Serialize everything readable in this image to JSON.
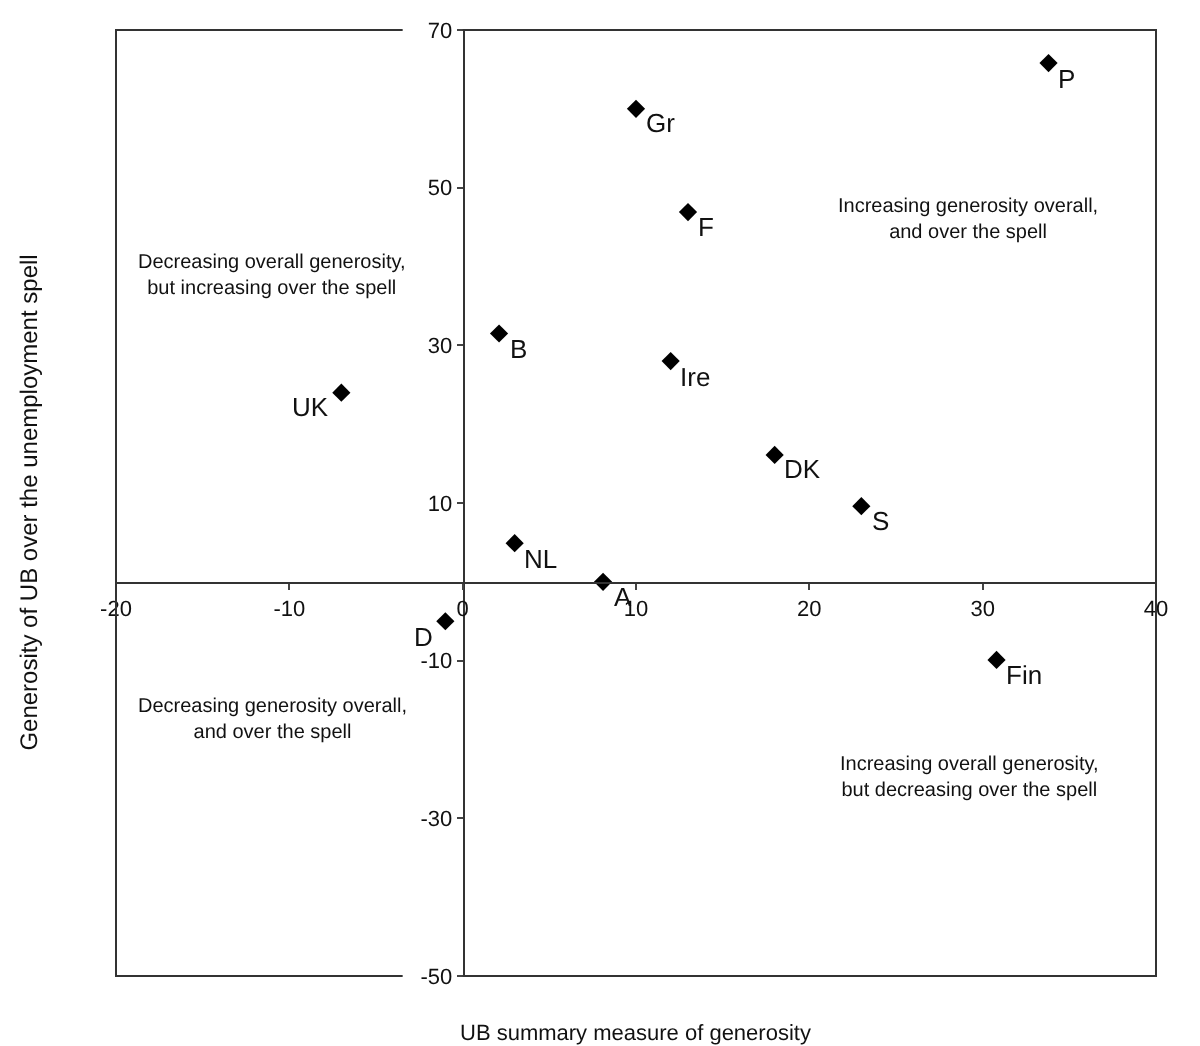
{
  "chart_data": {
    "type": "scatter",
    "xlabel": "UB summary measure of generosity",
    "ylabel": "Generosity of UB over the unemployment spell",
    "x": [
      33.8,
      10.0,
      13.0,
      2.1,
      12.0,
      -7.0,
      18.0,
      23.0,
      3.0,
      8.1,
      -1.0,
      30.8
    ],
    "values": [
      65.8,
      60.0,
      46.9,
      31.5,
      28.0,
      24.0,
      16.1,
      9.6,
      4.9,
      0,
      -5.0,
      -9.9
    ],
    "color": "#000000",
    "marker": "diamond",
    "grid": false,
    "xlim": [
      -20,
      40
    ],
    "xticks": [
      -20,
      -10,
      0,
      10,
      20,
      30,
      40
    ],
    "ylim": [
      -50,
      70
    ],
    "yticks": [
      -50,
      -30,
      -10,
      10,
      30,
      50,
      70
    ],
    "annotations": [
      "Decreasing overall generosity,\nbut increasing over the spell",
      "Increasing generosity overall,\nand over the spell",
      "Decreasing generosity overall,\nand over the spell",
      "Increasing overall generosity,\nbut decreasing over the spell",
      {
        "text": "P",
        "x": 33.8,
        "y": 65.8
      },
      {
        "text": "Gr",
        "x": 10.0,
        "y": 60.0
      },
      {
        "text": "F",
        "x": 13.0,
        "y": 46.9
      },
      {
        "text": "B",
        "x": 2.1,
        "y": 31.5
      },
      {
        "text": "Ire",
        "x": 12.0,
        "y": 28.0
      },
      {
        "text": "UK",
        "x": -7.0,
        "y": 24.0
      },
      {
        "text": "DK",
        "x": 18.0,
        "y": 16.1
      },
      {
        "text": "S",
        "x": 23.0,
        "y": 9.6
      },
      {
        "text": "NL",
        "x": 3.0,
        "y": 4.9
      },
      {
        "text": "A",
        "x": 8.1,
        "y": 0
      },
      {
        "text": "D",
        "x": -1.0,
        "y": -5.0
      },
      {
        "text": "Fin",
        "x": 30.8,
        "y": -9.9
      }
    ]
  }
}
